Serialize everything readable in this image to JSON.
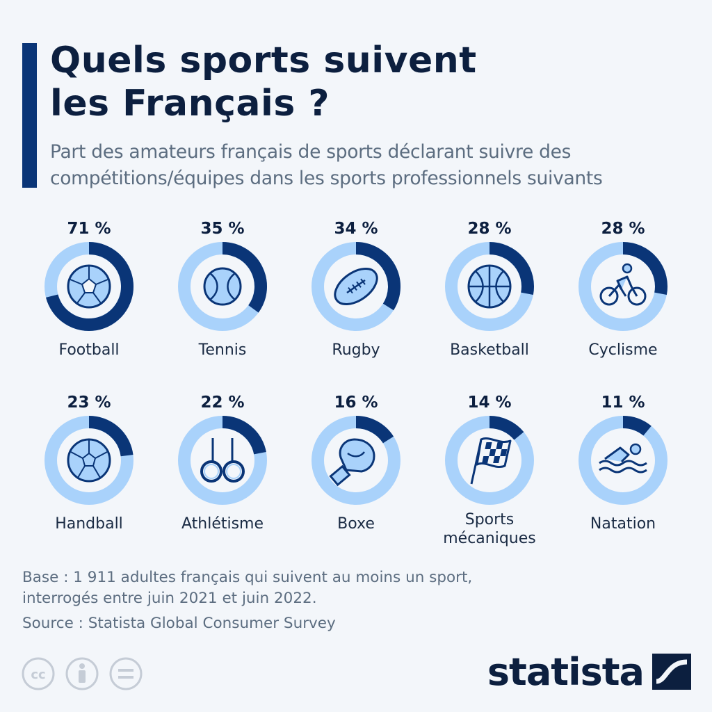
{
  "header": {
    "title_line1": "Quels sports suivent",
    "title_line2": "les Français ?",
    "subtitle_line1": "Part des amateurs français de sports déclarant suivre des",
    "subtitle_line2": "compétitions/équipes dans les sports professionnels suivants"
  },
  "chart_data": {
    "type": "pie",
    "unit": "%",
    "colors": {
      "filled": "#0a3577",
      "track": "#a9d2fb",
      "icon_fill": "#a9d2fb",
      "icon_stroke": "#0a3577"
    },
    "items": [
      {
        "category": "Football",
        "value": 71,
        "value_label": "71 %",
        "icon": "soccer-ball-icon"
      },
      {
        "category": "Tennis",
        "value": 35,
        "value_label": "35 %",
        "icon": "tennis-ball-icon"
      },
      {
        "category": "Rugby",
        "value": 34,
        "value_label": "34 %",
        "icon": "rugby-ball-icon"
      },
      {
        "category": "Basketball",
        "value": 28,
        "value_label": "28 %",
        "icon": "basketball-icon"
      },
      {
        "category": "Cyclisme",
        "value": 28,
        "value_label": "28 %",
        "icon": "cyclist-icon"
      },
      {
        "category": "Handball",
        "value": 23,
        "value_label": "23 %",
        "icon": "handball-icon"
      },
      {
        "category": "Athlétisme",
        "value": 22,
        "value_label": "22 %",
        "icon": "gymnastic-rings-icon"
      },
      {
        "category": "Boxe",
        "value": 16,
        "value_label": "16 %",
        "icon": "boxing-glove-icon"
      },
      {
        "category": "Sports mécaniques",
        "value": 14,
        "value_label": "14 %",
        "icon": "checkered-flag-icon",
        "label_lines": [
          "Sports",
          "mécaniques"
        ]
      },
      {
        "category": "Natation",
        "value": 11,
        "value_label": "11 %",
        "icon": "swimmer-icon"
      }
    ]
  },
  "footer": {
    "base_line1": "Base : 1 911 adultes français qui suivent au moins un sport,",
    "base_line2": "interrogés entre juin 2021 et juin 2022.",
    "source": "Source : Statista Global Consumer Survey",
    "logo_text": "statista",
    "licence_icons": [
      "cc-icon",
      "attribution-icon",
      "no-derivatives-icon"
    ]
  }
}
